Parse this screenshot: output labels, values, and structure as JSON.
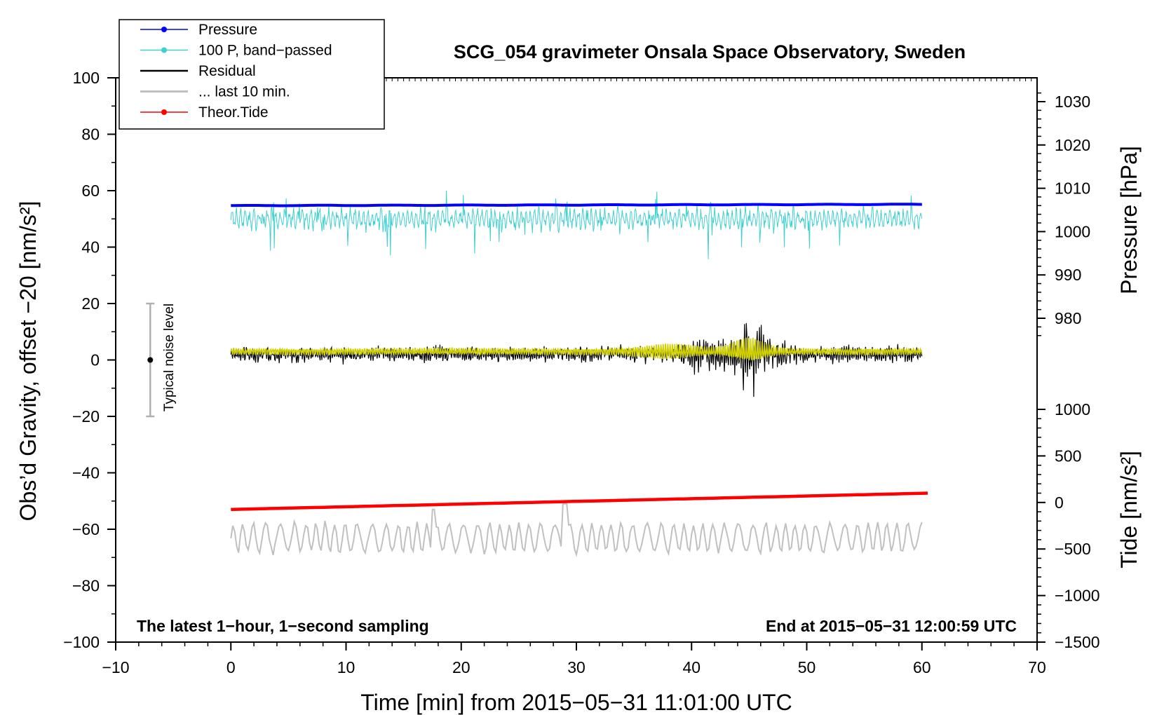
{
  "chart_data": {
    "type": "line",
    "title": "SCG_054 gravimeter Onsala Space Observatory, Sweden",
    "xlabel": "Time [min] from 2015−05−31 11:01:00 UTC",
    "ylabel_left": "Obs’d Gravity, offset −20 [nm/s²]",
    "ylabel_pressure": "Pressure [hPa]",
    "ylabel_tide": "Tide [nm/s²]",
    "xlim": [
      -10,
      70
    ],
    "ylim_left": [
      -100,
      100
    ],
    "xticks": [
      "−10",
      "0",
      "10",
      "20",
      "30",
      "40",
      "50",
      "60",
      "70"
    ],
    "yticks_left": [
      "100",
      "80",
      "60",
      "40",
      "20",
      "0",
      "−20",
      "−40",
      "−60",
      "−80",
      "−100"
    ],
    "yticks_pressure": [
      "1030",
      "1020",
      "1010",
      "1000",
      "990",
      "980"
    ],
    "yticks_tide": [
      "1000",
      "500",
      "0",
      "−500",
      "−1000",
      "−1500"
    ],
    "grid": false,
    "legend_position": "top-left",
    "legend": [
      {
        "label": "Pressure",
        "color": "#0000ff",
        "marker": true
      },
      {
        "label": "100 P, band−passed",
        "color": "#40d0d0",
        "marker": true
      },
      {
        "label": "Residual",
        "color": "#000000",
        "marker": false
      },
      {
        "label": "... last 10 min.",
        "color": "#c0c0c0",
        "marker": false
      },
      {
        "label": "Theor.Tide",
        "color": "#ff0000",
        "marker": true
      }
    ],
    "series": [
      {
        "name": "Pressure",
        "axis": "pressure",
        "color": "#0000ff",
        "x_range": [
          0,
          60
        ],
        "start": 1006.0,
        "end": 1006.3,
        "unit": "hPa"
      },
      {
        "name": "100 P, band−passed",
        "axis": "left",
        "color": "#40d0d0",
        "x_range": [
          0,
          60
        ],
        "center": 50,
        "noise_amplitude": 4,
        "min": 31,
        "max": 60
      },
      {
        "name": "Residual",
        "axis": "left",
        "color": "#000000",
        "x_range": [
          0,
          60
        ],
        "center": 2,
        "noise_amplitude": 4,
        "min": -15,
        "max": 20,
        "burst_center_min": 45
      },
      {
        "name": "... last 10 min.",
        "axis": "left",
        "color": "#d0d000",
        "x_range": [
          0,
          60
        ],
        "center": 3,
        "noise_amplitude": 1.5
      },
      {
        "name": "Theor.Tide",
        "axis": "tide",
        "color": "#ff0000",
        "x_range": [
          0,
          60.5
        ],
        "start": -75,
        "end": 100,
        "unit": "nm/s²"
      },
      {
        "name": "last 10 min (gravity, scaled)",
        "axis": "left",
        "color": "#c0c0c0",
        "x_range": [
          0,
          60
        ],
        "center": -63,
        "min": -70,
        "max": -50
      }
    ],
    "annotations": {
      "noise_label": "Typical noise level",
      "noise_bar": {
        "x": -7,
        "y": 0,
        "lower": -20,
        "upper": 20
      },
      "bottom_left": "The latest 1−hour, 1−second sampling",
      "bottom_right": "End at 2015−05−31 12:00:59 UTC"
    }
  }
}
